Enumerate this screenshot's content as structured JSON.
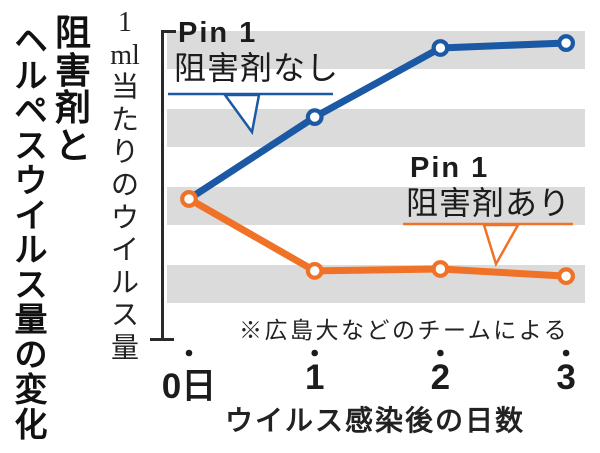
{
  "title": {
    "text": "阻害剤とヘルペスウイルス量の変化",
    "column1": "阻害剤と",
    "column2": "ヘルペスウイルス量の変化"
  },
  "y_axis": {
    "label": "1ml当たりのウイルス量",
    "label_parts": [
      "1",
      "ml",
      "当",
      "た",
      "り",
      "の",
      "ウ",
      "イ",
      "ル",
      "ス",
      "量"
    ]
  },
  "x_axis": {
    "title": "ウイルス感染後の日数",
    "tick_labels": [
      "0日",
      "1",
      "2",
      "3"
    ]
  },
  "labels": {
    "no_inhibitor": {
      "line1": "Pin 1",
      "line2": "阻害剤なし"
    },
    "with_inhibitor": {
      "line1": "Pin 1",
      "line2": "阻害剤あり"
    }
  },
  "source_note": "※広島大などのチームによる",
  "colors": {
    "blue": "#1b59a5",
    "orange": "#ef7226",
    "stripe_gray": "#dbdbdb",
    "text": "#1c1c1c"
  },
  "chart_data": {
    "type": "line",
    "title": "阻害剤とヘルペスウイルス量の変化",
    "xlabel": "ウイルス感染後の日数",
    "ylabel": "1ml当たりのウイルス量",
    "note": "※広島大などのチームによる",
    "x": [
      0,
      1,
      2,
      3
    ],
    "x_tick_labels": [
      "0日",
      "1",
      "2",
      "3"
    ],
    "y_axis_numeric_labels": false,
    "y_scale": "relative level 0-1 (axis shows no numbers, qualitative virus amount)",
    "grid": "horizontal gray bands",
    "legend_position": "inline callouts with leader pointers",
    "series": [
      {
        "name": "Pin 1 阻害剤なし",
        "color": "#1b59a5",
        "levels": [
          0.455,
          0.719,
          0.942,
          0.958
        ],
        "marker_days": [
          1,
          2,
          3
        ]
      },
      {
        "name": "Pin 1 阻害剤あり",
        "color": "#ef7226",
        "levels": [
          0.455,
          0.223,
          0.229,
          0.206
        ],
        "marker_days": [
          0,
          1,
          2,
          3
        ]
      }
    ]
  }
}
